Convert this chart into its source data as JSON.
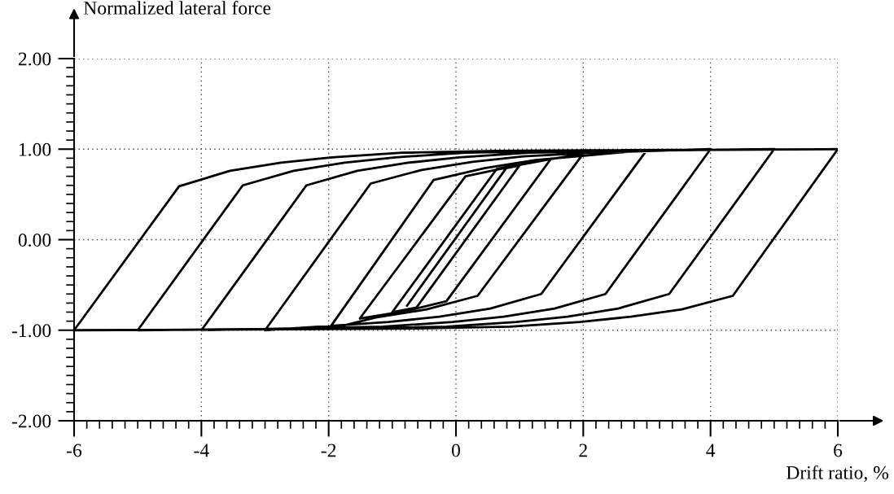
{
  "chart_data": {
    "type": "line",
    "xlabel": "Drift ratio, %",
    "ylabel": "Normalized lateral force",
    "xlim": [
      -6,
      6
    ],
    "ylim": [
      -2,
      2
    ],
    "xticks": [
      -6,
      -4,
      -2,
      0,
      2,
      4,
      6
    ],
    "yticks": [
      {
        "value": -2,
        "label": "-2.00"
      },
      {
        "value": -1,
        "label": "-1.00"
      },
      {
        "value": 0,
        "label": "0.00"
      },
      {
        "value": 1,
        "label": "1.00"
      },
      {
        "value": 2,
        "label": "2.00"
      }
    ],
    "grid": true,
    "line_style": "solid",
    "series": [
      {
        "color": "#000000",
        "x": [
          -0.77,
          0.79,
          1.0,
          -0.62,
          -1.0,
          0.64,
          1.05,
          1.49,
          -0.15,
          -0.8,
          -1.51,
          0.15,
          0.95,
          1.5,
          2.0,
          0.34,
          -0.46,
          -1.26,
          -2.0,
          -0.35,
          0.45,
          1.25,
          2.05,
          3.0,
          1.34,
          0.54,
          -0.26,
          -1.06,
          -2.16,
          -3.0,
          -1.34,
          -0.54,
          0.26,
          1.06,
          2.16,
          4.0,
          2.35,
          1.55,
          0.75,
          -0.05,
          -1.15,
          -2.65,
          -4.0,
          -2.35,
          -1.55,
          -0.75,
          0.05,
          1.15,
          2.65,
          5.0,
          3.35,
          2.55,
          1.75,
          0.95,
          -0.15,
          -1.65,
          -3.65,
          -5.0,
          -3.35,
          -2.55,
          -1.75,
          -0.95,
          0.15,
          1.65,
          3.65,
          6.0,
          4.35,
          3.55,
          2.75,
          1.95,
          0.85,
          -0.65,
          -2.65,
          -6.0,
          -4.35,
          -3.55,
          -2.75,
          -1.95,
          -0.85,
          0.65,
          2.65,
          6.0
        ],
        "values": [
          -0.73,
          0.79,
          0.82,
          -0.75,
          -0.8,
          0.78,
          0.84,
          0.89,
          -0.68,
          -0.79,
          -0.87,
          0.7,
          0.82,
          0.89,
          0.95,
          -0.62,
          -0.77,
          -0.86,
          -0.99,
          0.66,
          0.79,
          0.88,
          0.93,
          0.99,
          -0.6,
          -0.76,
          -0.85,
          -0.91,
          -0.96,
          -1.0,
          0.62,
          0.77,
          0.86,
          0.92,
          0.96,
          1.0,
          -0.6,
          -0.76,
          -0.85,
          -0.91,
          -0.96,
          -0.98,
          -1.0,
          0.6,
          0.76,
          0.85,
          0.91,
          0.96,
          0.98,
          1.0,
          -0.6,
          -0.76,
          -0.85,
          -0.91,
          -0.96,
          -0.98,
          -0.99,
          -1.0,
          0.6,
          0.76,
          0.85,
          0.91,
          0.96,
          0.98,
          0.99,
          1.0,
          -0.62,
          -0.77,
          -0.85,
          -0.91,
          -0.96,
          -0.98,
          -0.99,
          -1.0,
          0.59,
          0.76,
          0.85,
          0.91,
          0.96,
          0.98,
          0.99,
          1.0
        ]
      }
    ]
  }
}
